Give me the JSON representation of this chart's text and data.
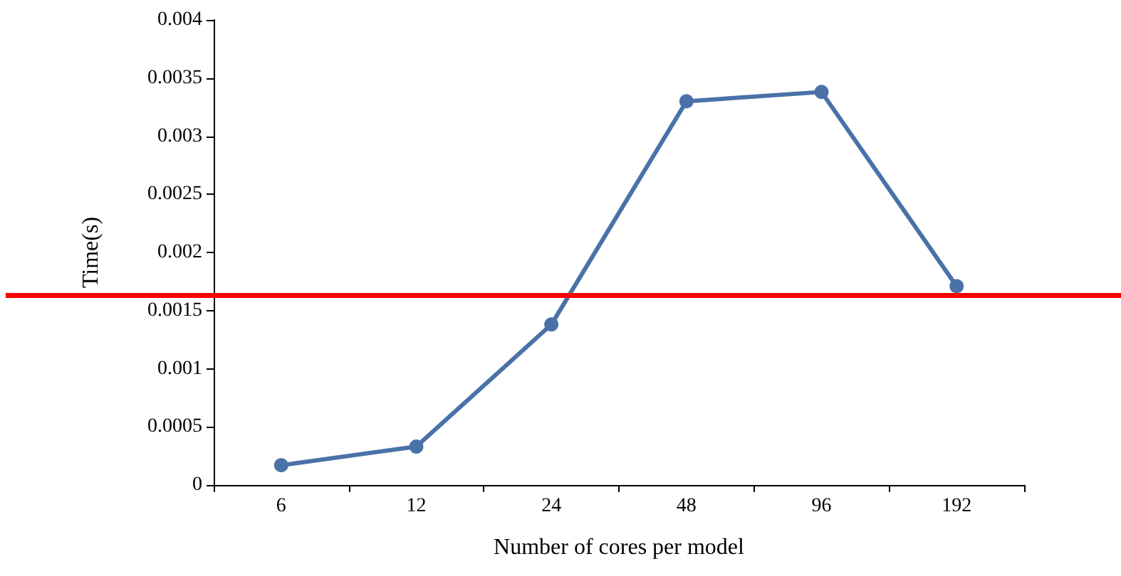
{
  "chart_data": {
    "type": "line",
    "xlabel": "Number of cores per model",
    "ylabel": "Time(s)",
    "categories": [
      "6",
      "12",
      "24",
      "48",
      "96",
      "192"
    ],
    "series": [
      {
        "color": "#4a72a8",
        "values": [
          0.00017,
          0.00033,
          0.00138,
          0.0033,
          0.00338,
          0.00171
        ]
      }
    ],
    "ylim": [
      0,
      0.004
    ],
    "yticks": [
      0,
      0.0005,
      0.001,
      0.0015,
      0.002,
      0.0025,
      0.003,
      0.0035,
      0.004
    ],
    "ref_lines": [
      {
        "axis": "y",
        "value": 0.00163,
        "color": "#ff0000",
        "line_style": "solid"
      }
    ],
    "grid": false,
    "marker": "circle",
    "line_style": "solid"
  }
}
